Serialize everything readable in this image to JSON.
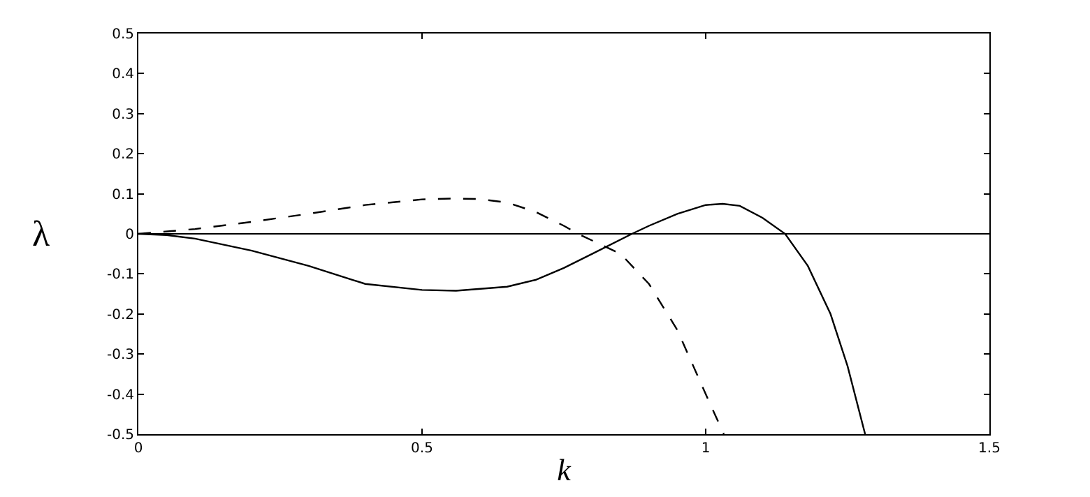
{
  "chart_data": {
    "type": "line",
    "xlabel": "k",
    "ylabel": "λ",
    "xlim": [
      0,
      1.5
    ],
    "ylim": [
      -0.5,
      0.5
    ],
    "xticks": [
      0,
      0.5,
      1,
      1.5
    ],
    "yticks": [
      -0.5,
      -0.4,
      -0.3,
      -0.2,
      -0.1,
      0,
      0.1,
      0.2,
      0.3,
      0.4,
      0.5
    ],
    "marker": "none",
    "ref_lines": [
      {
        "axis": "y",
        "value": 0,
        "color": "#000000",
        "line_style": "solid"
      }
    ],
    "series": [
      {
        "color": "#000000",
        "line_style": "solid",
        "x": [
          0,
          0.05,
          0.1,
          0.2,
          0.3,
          0.4,
          0.5,
          0.56,
          0.65,
          0.7,
          0.75,
          0.8,
          0.87,
          0.9,
          0.95,
          1.0,
          1.03,
          1.06,
          1.1,
          1.14,
          1.18,
          1.22,
          1.25,
          1.281
        ],
        "values": [
          0,
          -0.003,
          -0.012,
          -0.042,
          -0.08,
          -0.125,
          -0.14,
          -0.142,
          -0.132,
          -0.115,
          -0.085,
          -0.05,
          0,
          0.02,
          0.05,
          0.072,
          0.075,
          0.07,
          0.04,
          0,
          -0.08,
          -0.2,
          -0.33,
          -0.5
        ]
      },
      {
        "color": "#000000",
        "line_style": "dashed",
        "x": [
          0,
          0.1,
          0.2,
          0.3,
          0.4,
          0.5,
          0.55,
          0.6,
          0.65,
          0.7,
          0.75,
          0.775,
          0.85,
          0.9,
          0.95,
          1.0,
          1.032
        ],
        "values": [
          0,
          0.012,
          0.03,
          0.05,
          0.072,
          0.086,
          0.088,
          0.087,
          0.078,
          0.055,
          0.02,
          0,
          -0.05,
          -0.125,
          -0.24,
          -0.4,
          -0.5
        ]
      }
    ]
  }
}
